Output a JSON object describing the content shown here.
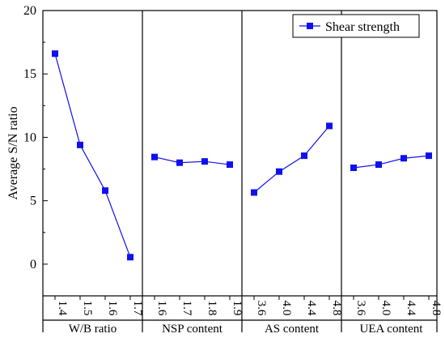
{
  "chart_data": {
    "type": "line",
    "ylabel": "Average S/N ratio",
    "ylim": [
      -2.5,
      20
    ],
    "yticks": [
      "0",
      "5",
      "10",
      "15",
      "20"
    ],
    "legend": {
      "label": "Shear strength",
      "position": "top-right"
    },
    "series_color": "#1010ee",
    "groups": [
      {
        "label": "W/B ratio",
        "categories": [
          "1.4",
          "1.5",
          "1.6",
          "1.7"
        ],
        "values": [
          16.6,
          9.4,
          5.8,
          0.55
        ]
      },
      {
        "label": "NSP content",
        "categories": [
          "1.6",
          "1.7",
          "1.8",
          "1.9"
        ],
        "values": [
          8.45,
          8.0,
          8.1,
          7.85
        ]
      },
      {
        "label": "AS content",
        "categories": [
          "3.6",
          "4.0",
          "4.4",
          "4.8"
        ],
        "values": [
          5.65,
          7.3,
          8.55,
          10.9
        ]
      },
      {
        "label": "UEA content",
        "categories": [
          "3.6",
          "4.0",
          "4.4",
          "4.8"
        ],
        "values": [
          7.6,
          7.85,
          8.35,
          8.55
        ]
      }
    ]
  }
}
